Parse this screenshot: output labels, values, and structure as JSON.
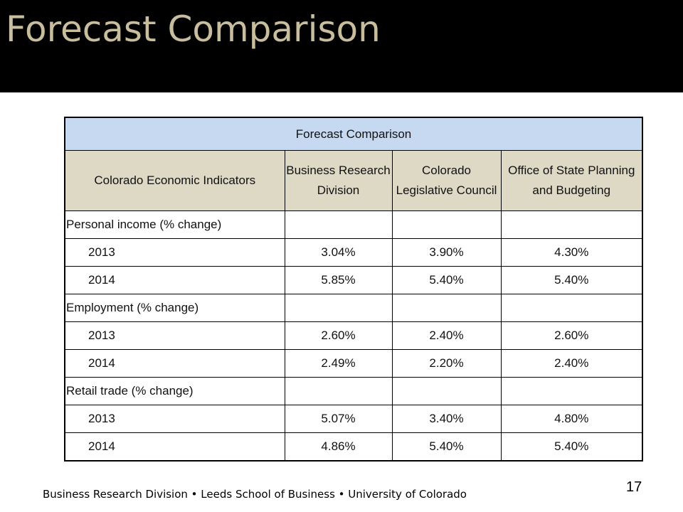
{
  "slide": {
    "title": "Forecast Comparison",
    "footer": "Business Research Division • Leeds School of Business • University of Colorado",
    "page_number": "17"
  },
  "table": {
    "caption": "Forecast Comparison",
    "headers": [
      "Colorado Economic Indicators",
      "Business Research Division",
      "Colorado Legislative Council",
      "Office of State Planning and Budgeting"
    ],
    "groups": [
      {
        "label": "Personal income (% change)",
        "rows": [
          {
            "year": "2013",
            "values": [
              "3.04%",
              "3.90%",
              "4.30%"
            ]
          },
          {
            "year": "2014",
            "values": [
              "5.85%",
              "5.40%",
              "5.40%"
            ]
          }
        ]
      },
      {
        "label": "Employment (% change)",
        "rows": [
          {
            "year": "2013",
            "values": [
              "2.60%",
              "2.40%",
              "2.60%"
            ]
          },
          {
            "year": "2014",
            "values": [
              "2.49%",
              "2.20%",
              "2.40%"
            ]
          }
        ]
      },
      {
        "label": "Retail trade (% change)",
        "rows": [
          {
            "year": "2013",
            "values": [
              "5.07%",
              "3.40%",
              "4.80%"
            ]
          },
          {
            "year": "2014",
            "values": [
              "4.86%",
              "5.40%",
              "5.40%"
            ]
          }
        ]
      }
    ]
  },
  "colors": {
    "title_bar": "#000000",
    "title_text": "#c8bd9c",
    "caption_fill": "#c6d9f0",
    "header_fill": "#ddd9c4"
  }
}
